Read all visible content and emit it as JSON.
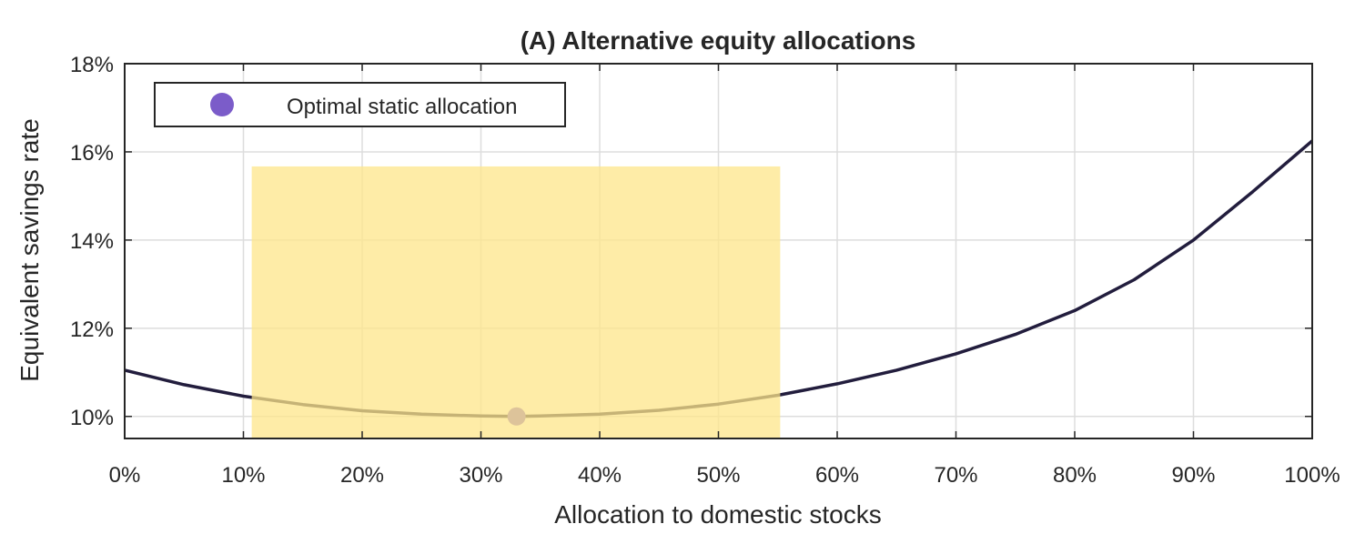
{
  "chart_data": {
    "type": "line",
    "title": "(A) Alternative equity allocations",
    "xlabel": "Allocation to domestic stocks",
    "ylabel": "Equivalent savings rate",
    "xlim": [
      0,
      100
    ],
    "ylim": [
      9.5,
      18
    ],
    "grid": true,
    "legend_position": "top-left",
    "x_ticks": [
      0,
      10,
      20,
      30,
      40,
      50,
      60,
      70,
      80,
      90,
      100
    ],
    "x_tick_labels": [
      "0%",
      "10%",
      "20%",
      "30%",
      "40%",
      "50%",
      "60%",
      "70%",
      "80%",
      "90%",
      "100%"
    ],
    "y_ticks": [
      10,
      12,
      14,
      16,
      18
    ],
    "y_tick_labels": [
      "10%",
      "12%",
      "14%",
      "16%",
      "18%"
    ],
    "series": [
      {
        "name": "",
        "color": "#221d3d",
        "x": [
          0,
          5,
          10,
          15,
          20,
          25,
          30,
          33,
          35,
          40,
          45,
          50,
          55,
          60,
          65,
          70,
          75,
          80,
          85,
          90,
          95,
          100
        ],
        "y": [
          11.05,
          10.72,
          10.46,
          10.27,
          10.13,
          10.05,
          10.01,
          10.0,
          10.01,
          10.05,
          10.14,
          10.28,
          10.48,
          10.74,
          11.05,
          11.42,
          11.86,
          12.4,
          13.1,
          14.0,
          15.1,
          16.25
        ]
      }
    ],
    "markers": [
      {
        "name": "Optimal static allocation",
        "x": 33,
        "y": 10.0,
        "color": "#7b5cc9"
      }
    ],
    "shaded_region": {
      "x0": 10.7,
      "x1": 55.2,
      "y0": 9.5,
      "y1": 15.67,
      "color": "#fde68a"
    }
  }
}
